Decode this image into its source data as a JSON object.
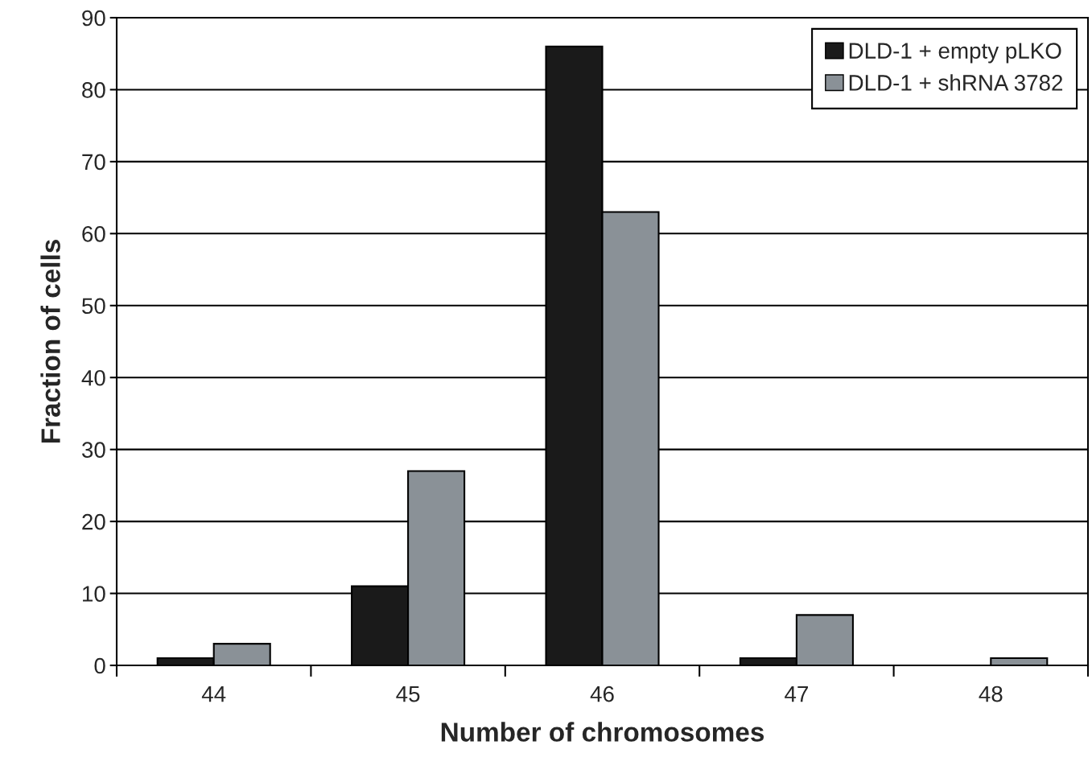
{
  "chart_data": {
    "type": "bar",
    "xlabel": "Number of chromosomes",
    "ylabel": "Fraction of cells",
    "categories": [
      "44",
      "45",
      "46",
      "47",
      "48"
    ],
    "series": [
      {
        "name": "DLD-1 + empty pLKO",
        "color": "#1a1a1a",
        "values": [
          1,
          11,
          86,
          1,
          null
        ]
      },
      {
        "name": "DLD-1 + shRNA 3782",
        "color": "#8a9197",
        "values": [
          3,
          27,
          63,
          7,
          1
        ]
      }
    ],
    "ylim": [
      0,
      90
    ],
    "yticks": [
      0,
      10,
      20,
      30,
      40,
      50,
      60,
      70,
      80,
      90
    ],
    "grid": "y",
    "legend": "top right"
  }
}
